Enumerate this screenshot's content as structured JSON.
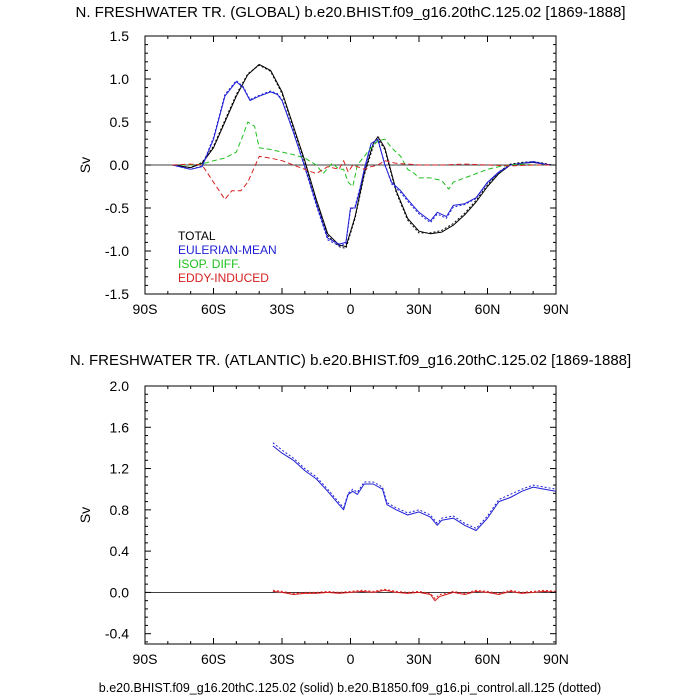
{
  "chart_data": [
    {
      "type": "line",
      "title": "N. FRESHWATER TR. (GLOBAL) b.e20.BHIST.f09_g16.20thC.125.02 [1869-1888]",
      "xlabel": "",
      "ylabel": "Sv",
      "xlim": [
        -90,
        90
      ],
      "ylim": [
        -1.5,
        1.5
      ],
      "xticks": [
        -90,
        -60,
        -30,
        0,
        30,
        60,
        90
      ],
      "xtick_labels": [
        "90S",
        "60S",
        "30S",
        "0",
        "30N",
        "60N",
        "90N"
      ],
      "yticks": [
        -1.5,
        -1.0,
        -0.5,
        0.0,
        0.5,
        1.0,
        1.5
      ],
      "ytick_labels": [
        "-1.5",
        "-1.0",
        "-0.5",
        "0.0",
        "0.5",
        "1.0",
        "1.5"
      ],
      "zero_line": true,
      "grid": false,
      "legend": {
        "placement": "lower-left",
        "entries": [
          "TOTAL",
          "EULERIAN-MEAN",
          "ISOP. DIFF.",
          "EDDY-INDUCED"
        ]
      },
      "colors": {
        "TOTAL": "#000000",
        "EULERIAN-MEAN": "#1f1fd6",
        "ISOP. DIFF.": "#1fbf1f",
        "EDDY-INDUCED": "#d61f1f"
      },
      "series": [
        {
          "name": "TOTAL",
          "style": "solid",
          "x": [
            -78,
            -70,
            -65,
            -60,
            -55,
            -50,
            -45,
            -40,
            -35,
            -30,
            -25,
            -20,
            -15,
            -10,
            -5,
            -2,
            2,
            6,
            10,
            12,
            15,
            20,
            25,
            30,
            35,
            40,
            45,
            50,
            55,
            60,
            65,
            70,
            75,
            80,
            85,
            88
          ],
          "y": [
            0.0,
            -0.03,
            0.02,
            0.2,
            0.5,
            0.8,
            1.05,
            1.17,
            1.1,
            0.85,
            0.45,
            0.05,
            -0.4,
            -0.8,
            -0.93,
            -0.95,
            -0.6,
            -0.1,
            0.25,
            0.33,
            0.2,
            -0.3,
            -0.62,
            -0.77,
            -0.8,
            -0.78,
            -0.7,
            -0.58,
            -0.43,
            -0.25,
            -0.1,
            0.0,
            0.02,
            0.03,
            0.01,
            0.0
          ]
        },
        {
          "name": "TOTAL",
          "style": "dotted",
          "x": [
            -78,
            -70,
            -65,
            -60,
            -55,
            -50,
            -45,
            -40,
            -35,
            -30,
            -25,
            -20,
            -15,
            -10,
            -5,
            -2,
            2,
            6,
            10,
            12,
            15,
            20,
            25,
            30,
            35,
            40,
            45,
            50,
            55,
            60,
            65,
            70,
            75,
            80,
            85,
            88
          ],
          "y": [
            0.0,
            -0.03,
            0.03,
            0.22,
            0.52,
            0.82,
            1.06,
            1.16,
            1.09,
            0.83,
            0.43,
            0.03,
            -0.42,
            -0.82,
            -0.95,
            -0.97,
            -0.62,
            -0.12,
            0.22,
            0.3,
            0.18,
            -0.32,
            -0.64,
            -0.79,
            -0.79,
            -0.76,
            -0.68,
            -0.56,
            -0.41,
            -0.23,
            -0.08,
            0.01,
            0.03,
            0.04,
            0.02,
            0.0
          ]
        },
        {
          "name": "EULERIAN-MEAN",
          "style": "solid",
          "x": [
            -78,
            -70,
            -65,
            -60,
            -55,
            -50,
            -47,
            -44,
            -40,
            -35,
            -32,
            -30,
            -25,
            -20,
            -15,
            -10,
            -5,
            -2,
            0,
            2,
            4,
            6,
            9,
            12,
            15,
            18,
            22,
            25,
            30,
            35,
            38,
            42,
            45,
            50,
            55,
            60,
            65,
            70,
            75,
            80,
            85,
            88
          ],
          "y": [
            0.0,
            -0.05,
            -0.02,
            0.3,
            0.8,
            0.97,
            0.9,
            0.75,
            0.8,
            0.85,
            0.82,
            0.75,
            0.38,
            -0.02,
            -0.45,
            -0.85,
            -0.92,
            -0.9,
            -0.5,
            -0.5,
            -0.3,
            -0.05,
            0.25,
            0.3,
            0.0,
            -0.2,
            -0.3,
            -0.4,
            -0.55,
            -0.65,
            -0.55,
            -0.6,
            -0.47,
            -0.45,
            -0.38,
            -0.2,
            -0.08,
            0.0,
            0.02,
            0.04,
            0.01,
            0.0
          ]
        },
        {
          "name": "EULERIAN-MEAN",
          "style": "dotted",
          "x": [
            -78,
            -70,
            -65,
            -60,
            -55,
            -50,
            -47,
            -44,
            -40,
            -35,
            -32,
            -30,
            -25,
            -20,
            -15,
            -10,
            -5,
            -2,
            0,
            2,
            4,
            6,
            9,
            12,
            15,
            18,
            22,
            25,
            30,
            35,
            38,
            42,
            45,
            50,
            55,
            60,
            65,
            70,
            75,
            80,
            85,
            88
          ],
          "y": [
            0.0,
            -0.05,
            -0.01,
            0.32,
            0.82,
            0.98,
            0.91,
            0.76,
            0.81,
            0.86,
            0.83,
            0.76,
            0.39,
            -0.03,
            -0.47,
            -0.87,
            -0.94,
            -0.92,
            -0.52,
            -0.48,
            -0.28,
            -0.07,
            0.22,
            0.28,
            0.02,
            -0.22,
            -0.32,
            -0.42,
            -0.57,
            -0.67,
            -0.57,
            -0.62,
            -0.49,
            -0.46,
            -0.39,
            -0.21,
            -0.09,
            0.0,
            0.02,
            0.03,
            0.01,
            0.0
          ]
        },
        {
          "name": "ISOP. DIFF.",
          "style": "dashed",
          "x": [
            -78,
            -70,
            -65,
            -60,
            -55,
            -50,
            -47,
            -45,
            -42,
            -40,
            -35,
            -30,
            -25,
            -20,
            -15,
            -12,
            -8,
            -5,
            -3,
            -1,
            1,
            3,
            6,
            9,
            12,
            15,
            18,
            22,
            25,
            28,
            30,
            35,
            40,
            43,
            45,
            50,
            55,
            60,
            65,
            70,
            75,
            80,
            85,
            88
          ],
          "y": [
            0.0,
            0.0,
            0.01,
            0.05,
            0.08,
            0.15,
            0.35,
            0.5,
            0.45,
            0.2,
            0.18,
            0.15,
            0.12,
            0.08,
            0.0,
            -0.1,
            0.02,
            -0.05,
            -0.05,
            -0.2,
            -0.25,
            0.0,
            0.1,
            0.2,
            0.28,
            0.3,
            0.2,
            0.1,
            -0.05,
            -0.1,
            -0.15,
            -0.15,
            -0.18,
            -0.28,
            -0.2,
            -0.15,
            -0.1,
            -0.05,
            -0.02,
            0.0,
            0.01,
            0.0,
            0.0,
            0.0
          ]
        },
        {
          "name": "EDDY-INDUCED",
          "style": "dashed",
          "x": [
            -78,
            -70,
            -65,
            -60,
            -55,
            -52,
            -48,
            -45,
            -40,
            -35,
            -30,
            -25,
            -20,
            -15,
            -10,
            -5,
            -3,
            -1,
            1,
            3,
            6,
            9,
            12,
            15,
            20,
            25,
            30,
            40,
            50,
            60,
            70,
            80,
            88
          ],
          "y": [
            0.0,
            0.01,
            0.0,
            -0.2,
            -0.4,
            -0.3,
            -0.3,
            -0.2,
            0.1,
            0.08,
            0.05,
            0.0,
            -0.05,
            -0.1,
            -0.02,
            -0.05,
            0.05,
            -0.08,
            0.0,
            -0.02,
            -0.05,
            -0.02,
            0.0,
            0.05,
            0.02,
            0.01,
            0.0,
            0.0,
            0.01,
            0.0,
            -0.01,
            0.0,
            0.0
          ]
        }
      ]
    },
    {
      "type": "line",
      "title": "N. FRESHWATER TR. (ATLANTIC) b.e20.BHIST.f09_g16.20thC.125.02 [1869-1888]",
      "xlabel": "",
      "ylabel": "Sv",
      "xlim": [
        -90,
        90
      ],
      "ylim": [
        -0.5,
        2.0
      ],
      "xticks": [
        -90,
        -60,
        -30,
        0,
        30,
        60,
        90
      ],
      "xtick_labels": [
        "90S",
        "60S",
        "30S",
        "0",
        "30N",
        "60N",
        "90N"
      ],
      "yticks": [
        -0.4,
        0.0,
        0.4,
        0.8,
        1.2,
        1.6,
        2.0
      ],
      "ytick_labels": [
        "-0.4",
        "0.0",
        "0.4",
        "0.8",
        "1.2",
        "1.6",
        "2.0"
      ],
      "zero_line": true,
      "grid": false,
      "colors": {
        "TOTAL": "#000000",
        "EULERIAN-MEAN": "#1f1fd6",
        "ISOP. DIFF.": "#1fbf1f",
        "EDDY-INDUCED": "#d61f1f"
      },
      "series": [
        {
          "name": "EULERIAN-MEAN",
          "style": "solid",
          "x": [
            -34,
            -30,
            -25,
            -20,
            -15,
            -10,
            -5,
            -3,
            -1,
            1,
            3,
            6,
            10,
            14,
            16,
            20,
            25,
            30,
            35,
            38,
            40,
            45,
            50,
            55,
            60,
            65,
            70,
            75,
            80,
            85,
            90
          ],
          "y": [
            1.42,
            1.35,
            1.28,
            1.18,
            1.1,
            0.98,
            0.85,
            0.8,
            0.95,
            0.98,
            0.95,
            1.05,
            1.05,
            1.0,
            0.85,
            0.8,
            0.75,
            0.78,
            0.73,
            0.65,
            0.7,
            0.72,
            0.65,
            0.6,
            0.72,
            0.88,
            0.92,
            0.98,
            1.02,
            1.0,
            0.98
          ]
        },
        {
          "name": "EULERIAN-MEAN",
          "style": "dotted",
          "x": [
            -34,
            -30,
            -25,
            -20,
            -15,
            -10,
            -5,
            -3,
            -1,
            1,
            3,
            6,
            10,
            14,
            16,
            20,
            25,
            30,
            35,
            38,
            40,
            45,
            50,
            55,
            60,
            65,
            70,
            75,
            80,
            85,
            90
          ],
          "y": [
            1.45,
            1.38,
            1.3,
            1.2,
            1.12,
            1.0,
            0.87,
            0.82,
            0.96,
            1.0,
            0.97,
            1.07,
            1.07,
            1.02,
            0.87,
            0.82,
            0.77,
            0.8,
            0.75,
            0.67,
            0.72,
            0.74,
            0.67,
            0.62,
            0.74,
            0.9,
            0.95,
            1.0,
            1.04,
            1.02,
            1.0
          ]
        },
        {
          "name": "EDDY-INDUCED",
          "style": "solid",
          "x": [
            -34,
            -30,
            -25,
            -20,
            -15,
            -10,
            -5,
            0,
            5,
            10,
            15,
            20,
            25,
            30,
            35,
            37,
            39,
            42,
            45,
            50,
            55,
            60,
            65,
            70,
            75,
            80,
            85,
            90
          ],
          "y": [
            0.01,
            0.0,
            -0.02,
            -0.01,
            -0.01,
            0.0,
            -0.01,
            0.0,
            0.01,
            0.0,
            0.02,
            0.0,
            -0.01,
            0.0,
            -0.02,
            -0.08,
            -0.04,
            -0.02,
            0.0,
            -0.02,
            0.01,
            0.0,
            -0.02,
            0.01,
            -0.01,
            0.0,
            0.01,
            0.0
          ]
        },
        {
          "name": "EDDY-INDUCED",
          "style": "dotted",
          "x": [
            -34,
            -30,
            -25,
            -20,
            -15,
            -10,
            -5,
            0,
            5,
            10,
            15,
            20,
            25,
            30,
            35,
            37,
            39,
            42,
            45,
            50,
            55,
            60,
            65,
            70,
            75,
            80,
            85,
            90
          ],
          "y": [
            0.02,
            0.01,
            -0.01,
            0.0,
            0.0,
            0.01,
            0.0,
            0.01,
            0.02,
            0.01,
            0.03,
            0.01,
            0.0,
            0.01,
            -0.01,
            -0.06,
            -0.02,
            -0.01,
            0.01,
            -0.01,
            0.02,
            0.01,
            -0.01,
            0.02,
            0.0,
            0.01,
            0.02,
            0.01
          ]
        }
      ]
    }
  ],
  "footer": "b.e20.BHIST.f09_g16.20thC.125.02 (solid) b.e20.B1850.f09_g16.pi_control.all.125 (dotted)"
}
